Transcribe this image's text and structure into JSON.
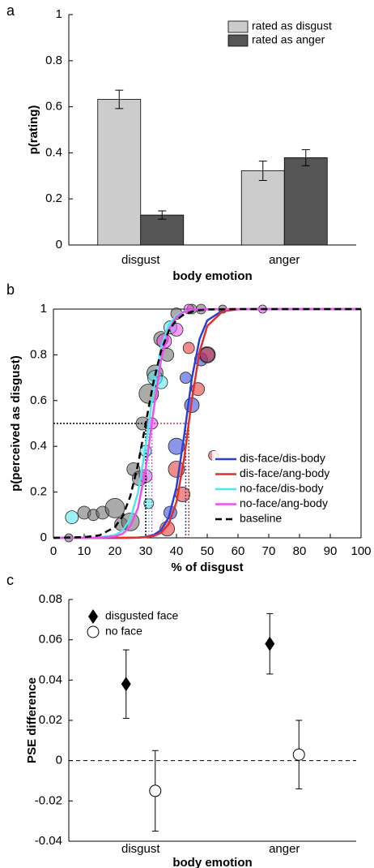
{
  "chart_data": [
    {
      "type": "bar",
      "panel": "a",
      "ylabel": "p(rating)",
      "xlabel": "body emotion",
      "categories": [
        "disgust",
        "anger"
      ],
      "series": [
        {
          "name": "rated as disgust",
          "color": "#cccccc",
          "values": [
            0.632,
            0.322
          ],
          "errors": [
            0.04,
            0.042
          ]
        },
        {
          "name": "rated as anger",
          "color": "#555555",
          "values": [
            0.13,
            0.379
          ],
          "errors": [
            0.018,
            0.035
          ]
        }
      ],
      "ylim": [
        0,
        1
      ],
      "yticks": [
        0,
        0.2,
        0.4,
        0.6,
        0.8,
        1
      ],
      "legend": "upper right"
    },
    {
      "type": "line",
      "panel": "b",
      "ylabel": "p(perceived as disgust)",
      "xlabel": "% of disgust",
      "x": [
        0,
        10,
        15,
        20,
        22.5,
        25,
        27.5,
        30,
        32.5,
        35,
        37.5,
        40,
        42.5,
        45,
        47.5,
        50,
        55,
        60,
        70,
        100
      ],
      "series": [
        {
          "name": "dis-face/dis-body",
          "color": "#2a3fd6",
          "style": "solid",
          "pse": 43,
          "values": [
            0,
            0,
            0,
            0,
            0,
            0.001,
            0.001,
            0.004,
            0.012,
            0.034,
            0.09,
            0.221,
            0.448,
            0.698,
            0.869,
            0.95,
            0.994,
            0.999,
            1,
            1
          ],
          "points": {
            "x": [
              38,
              40,
              43,
              45,
              48,
              50
            ],
            "y": [
              0.11,
              0.4,
              0.7,
              0.58,
              0.78,
              0.8
            ],
            "size": [
              8,
              10,
              7,
              9,
              8,
              10
            ]
          }
        },
        {
          "name": "dis-face/ang-body",
          "color": "#e0302a",
          "style": "solid",
          "pse": 44,
          "values": [
            0,
            0,
            0,
            0,
            0,
            0,
            0.001,
            0.003,
            0.008,
            0.022,
            0.061,
            0.157,
            0.347,
            0.604,
            0.813,
            0.926,
            0.99,
            0.999,
            1,
            1
          ],
          "points": {
            "x": [
              37,
              40,
              42,
              44,
              47,
              50,
              52
            ],
            "y": [
              0.04,
              0.3,
              0.19,
              0.83,
              0.65,
              0.8,
              0.36
            ],
            "size": [
              9,
              10,
              9,
              7,
              8,
              9,
              6
            ]
          }
        },
        {
          "name": "no-face/dis-body",
          "color": "#4de8ee",
          "style": "solid",
          "pse": 31,
          "values": [
            0,
            0,
            0.002,
            0.012,
            0.032,
            0.083,
            0.198,
            0.401,
            0.646,
            0.832,
            0.931,
            0.973,
            0.99,
            0.996,
            0.999,
            0.999,
            1,
            1,
            1,
            1
          ],
          "points": {
            "x": [
              6,
              31,
              30,
              33,
              35,
              38
            ],
            "y": [
              0.09,
              0.15,
              0.38,
              0.7,
              0.68,
              0.92
            ],
            "size": [
              8,
              6,
              7,
              9,
              8,
              8
            ]
          }
        },
        {
          "name": "no-face/ang-body",
          "color": "#ee4ef0",
          "style": "solid",
          "pse": 32,
          "values": [
            0,
            0,
            0.001,
            0.006,
            0.018,
            0.05,
            0.131,
            0.302,
            0.552,
            0.779,
            0.91,
            0.966,
            0.988,
            0.996,
            0.999,
            0.999,
            1,
            1,
            1,
            1
          ],
          "points": {
            "x": [
              30,
              32,
              36,
              40,
              44,
              68
            ],
            "y": [
              0.27,
              0.5,
              0.86,
              0.91,
              1,
              1
            ],
            "size": [
              8,
              7,
              9,
              8,
              6,
              5
            ]
          }
        },
        {
          "name": "baseline",
          "color": "#000000",
          "style": "dashed",
          "pse": 30,
          "values": [
            0,
            0.003,
            0.011,
            0.047,
            0.095,
            0.182,
            0.321,
            0.5,
            0.679,
            0.818,
            0.905,
            0.953,
            0.977,
            0.989,
            0.995,
            0.998,
            0.999,
            1,
            1,
            1
          ],
          "points": {
            "x": [
              5,
              10,
              13,
              16,
              20,
              22,
              25,
              26,
              28,
              29,
              31,
              33,
              35,
              37,
              40,
              45,
              48,
              55
            ],
            "y": [
              0,
              0.11,
              0.1,
              0.11,
              0.13,
              0.06,
              0.07,
              0.3,
              0.26,
              0.5,
              0.63,
              0.72,
              0.87,
              0.8,
              0.98,
              1,
              1,
              1
            ],
            "size": [
              5,
              8,
              7,
              8,
              12,
              8,
              11,
              8,
              9,
              8,
              12,
              10,
              9,
              8,
              7,
              6,
              6,
              5
            ]
          }
        }
      ],
      "xlim": [
        0,
        100
      ],
      "xticks": [
        0,
        10,
        20,
        30,
        40,
        50,
        60,
        70,
        80,
        90,
        100
      ],
      "ylim": [
        0,
        1
      ],
      "yticks": [
        0,
        0.2,
        0.4,
        0.6,
        0.8,
        1
      ],
      "legend": "lower right"
    },
    {
      "type": "scatter",
      "panel": "c",
      "ylabel": "PSE difference",
      "xlabel": "body emotion",
      "categories": [
        "disgust",
        "anger"
      ],
      "series": [
        {
          "name": "disgusted face",
          "marker": "diamond",
          "color": "#000000",
          "values": [
            0.038,
            0.058
          ],
          "errors": [
            0.017,
            0.015
          ]
        },
        {
          "name": "no face",
          "marker": "circle",
          "color": "#000000",
          "values": [
            -0.015,
            0.003
          ],
          "errors": [
            0.02,
            0.017
          ]
        }
      ],
      "hline": 0,
      "ylim": [
        -0.04,
        0.08
      ],
      "yticks": [
        -0.04,
        -0.02,
        0,
        0.02,
        0.04,
        0.06,
        0.08
      ],
      "legend": "upper left"
    }
  ]
}
